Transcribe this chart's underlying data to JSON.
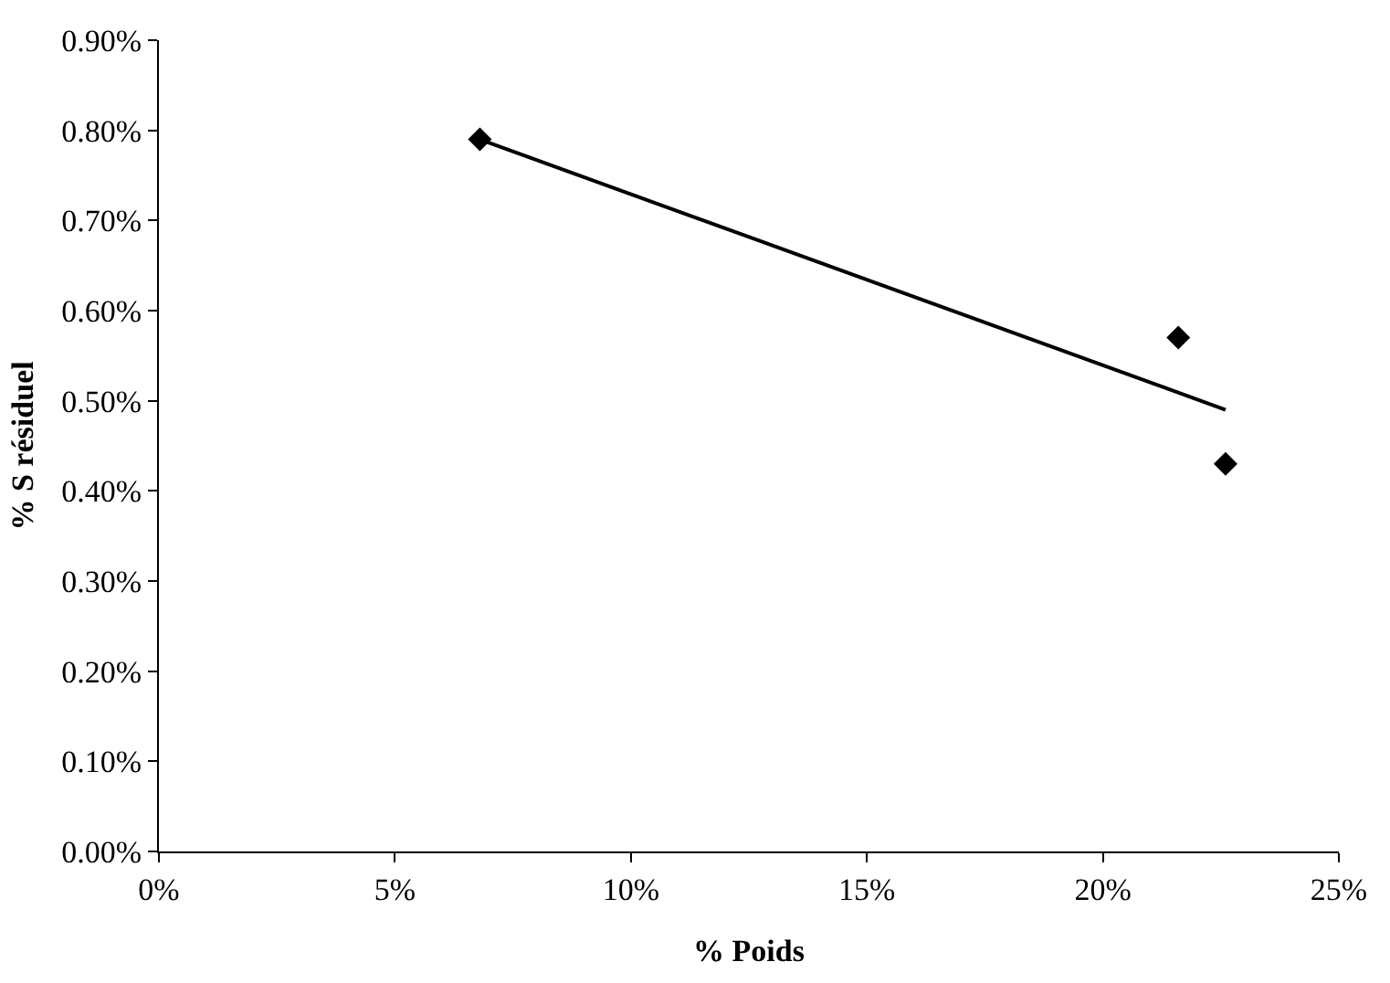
{
  "chart_data": {
    "type": "scatter",
    "xlabel": "% Poids",
    "ylabel": "% S résiduel",
    "xlim": [
      0,
      25
    ],
    "ylim": [
      0,
      0.9
    ],
    "xticks": [
      {
        "value": 0,
        "label": "0%"
      },
      {
        "value": 5,
        "label": "5%"
      },
      {
        "value": 10,
        "label": "10%"
      },
      {
        "value": 15,
        "label": "15%"
      },
      {
        "value": 20,
        "label": "20%"
      },
      {
        "value": 25,
        "label": "25%"
      }
    ],
    "yticks": [
      {
        "value": 0,
        "label": "0.00%"
      },
      {
        "value": 0.1,
        "label": "0.10%"
      },
      {
        "value": 0.2,
        "label": "0.20%"
      },
      {
        "value": 0.3,
        "label": "0.30%"
      },
      {
        "value": 0.4,
        "label": "0.40%"
      },
      {
        "value": 0.5,
        "label": "0.50%"
      },
      {
        "value": 0.6,
        "label": "0.60%"
      },
      {
        "value": 0.7,
        "label": "0.70%"
      },
      {
        "value": 0.8,
        "label": "0.80%"
      },
      {
        "value": 0.9,
        "label": "0.90%"
      }
    ],
    "marker": "diamond",
    "x": [
      6.8,
      21.6,
      22.6
    ],
    "series": [
      {
        "color": "#000000",
        "values": [
          0.79,
          0.57,
          0.43
        ]
      },
      {
        "type": "line",
        "color": "#000000",
        "x": [
          6.8,
          22.6
        ],
        "values": [
          0.79,
          0.49
        ],
        "marker": "none",
        "line_style": "solid"
      }
    ]
  }
}
